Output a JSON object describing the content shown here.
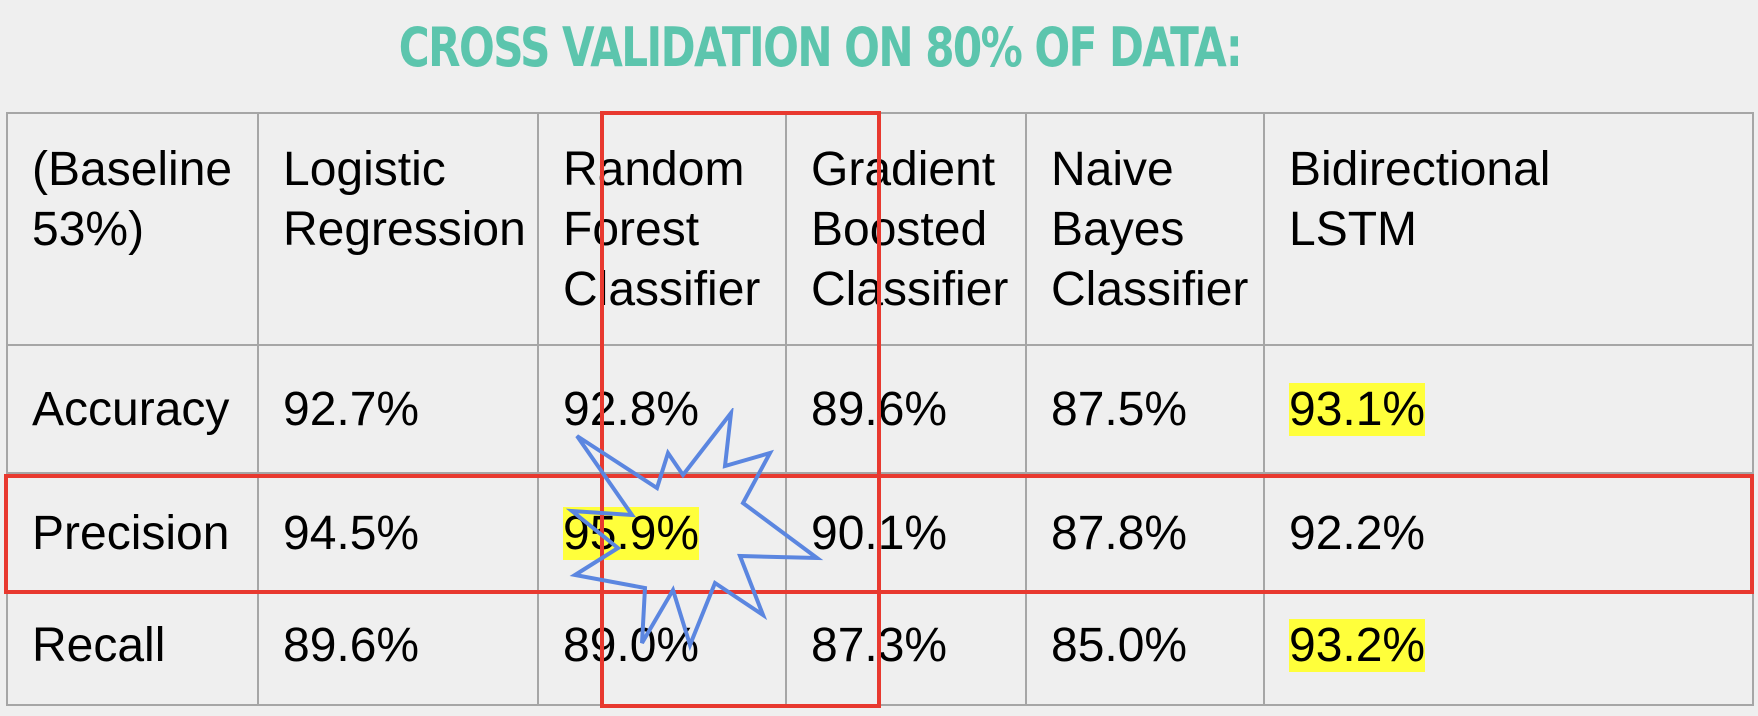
{
  "title": "CROSS VALIDATION ON 80% OF DATA:",
  "table": {
    "header": [
      "(Baseline\n53%)",
      "Logistic\nRegression",
      "Random\nForest\nClassifier",
      "Gradient\nBoosted\nClassifier",
      "Naive\nBayes\nClassifier",
      "Bidirectional\nLSTM"
    ],
    "rows": [
      {
        "metric": "Accuracy",
        "values": [
          "92.7%",
          "92.8%",
          "89.6%",
          "87.5%",
          "93.1%"
        ],
        "highlighted": [
          false,
          false,
          false,
          false,
          true
        ]
      },
      {
        "metric": "Precision",
        "values": [
          "94.5%",
          "95.9%",
          "90.1%",
          "87.8%",
          "92.2%"
        ],
        "highlighted": [
          false,
          true,
          false,
          false,
          false
        ]
      },
      {
        "metric": "Recall",
        "values": [
          "89.6%",
          "89.0%",
          "87.3%",
          "85.0%",
          "93.2%"
        ],
        "highlighted": [
          false,
          false,
          false,
          false,
          true
        ]
      }
    ]
  },
  "colors": {
    "title": "#5cc5ad",
    "highlight": "#ffff3b",
    "box_outline": "#e8392f",
    "burst_outline": "#5b86e0",
    "border": "#a6a6a6"
  },
  "annotations": {
    "boxed_column": "Random Forest Classifier",
    "boxed_row": "Precision",
    "burst_icon": "starburst-icon"
  }
}
